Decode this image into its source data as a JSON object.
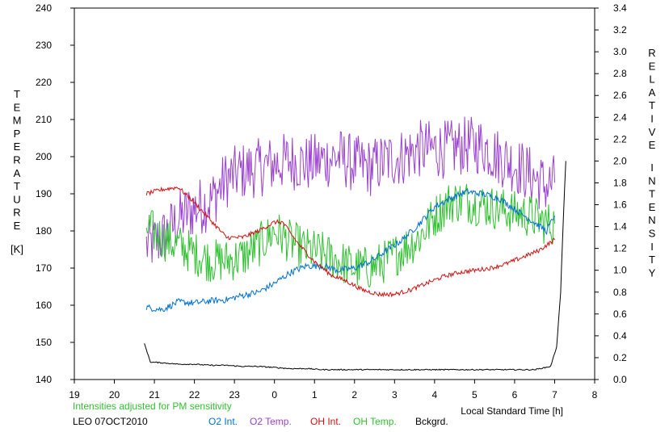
{
  "chart_data": {
    "type": "line",
    "left_axis": {
      "label_letters": [
        "T",
        "E",
        "M",
        "P",
        "E",
        "R",
        "A",
        "T",
        "U",
        "R",
        "E"
      ],
      "unit": "[K]",
      "ylim": [
        140,
        240
      ],
      "ticks": [
        "140",
        "150",
        "160",
        "170",
        "180",
        "190",
        "200",
        "210",
        "220",
        "230",
        "240"
      ]
    },
    "right_axis": {
      "label1_letters": [
        "R",
        "E",
        "L",
        "A",
        "T",
        "I",
        "V",
        "E"
      ],
      "label2_letters": [
        "I",
        "N",
        "T",
        "E",
        "N",
        "S",
        "I",
        "T",
        "Y"
      ],
      "ylim": [
        0.0,
        3.4
      ],
      "ticks": [
        "0.0",
        "0.2",
        "0.4",
        "0.6",
        "0.8",
        "1.0",
        "1.2",
        "1.4",
        "1.6",
        "1.8",
        "2.0",
        "2.2",
        "2.4",
        "2.6",
        "2.8",
        "3.0",
        "3.2",
        "3.4"
      ]
    },
    "x_axis": {
      "xlabel": "Local Standard Time [h]",
      "xlim": [
        19,
        32
      ],
      "tick_labels": [
        "19",
        "20",
        "21",
        "22",
        "23",
        "0",
        "1",
        "2",
        "3",
        "4",
        "5",
        "6",
        "7",
        "8"
      ]
    },
    "note": "Intensities adjusted for PM sensitivity",
    "station": "LEO 07OCT2010",
    "series": [
      {
        "name": "O2 Int.",
        "color": "#0070d0",
        "axis": "right",
        "noise": 0.03,
        "points": [
          [
            20.8,
            0.66
          ],
          [
            21.2,
            0.64
          ],
          [
            21.6,
            0.71
          ],
          [
            22.0,
            0.7
          ],
          [
            22.4,
            0.72
          ],
          [
            22.8,
            0.73
          ],
          [
            23.2,
            0.77
          ],
          [
            23.6,
            0.8
          ],
          [
            24.0,
            0.88
          ],
          [
            24.4,
            0.98
          ],
          [
            24.8,
            1.04
          ],
          [
            25.2,
            1.04
          ],
          [
            25.6,
            1.0
          ],
          [
            26.0,
            1.02
          ],
          [
            26.4,
            1.08
          ],
          [
            26.8,
            1.18
          ],
          [
            27.2,
            1.28
          ],
          [
            27.6,
            1.42
          ],
          [
            28.0,
            1.58
          ],
          [
            28.4,
            1.66
          ],
          [
            28.8,
            1.72
          ],
          [
            29.2,
            1.7
          ],
          [
            29.6,
            1.66
          ],
          [
            30.0,
            1.56
          ],
          [
            30.4,
            1.46
          ],
          [
            30.8,
            1.36
          ],
          [
            31.0,
            1.5
          ]
        ]
      },
      {
        "name": "O2 Temp.",
        "color": "#9a40d0",
        "axis": "left",
        "noise": 8,
        "points": [
          [
            20.8,
            176
          ],
          [
            21.2,
            178
          ],
          [
            21.6,
            183
          ],
          [
            22.0,
            186
          ],
          [
            22.4,
            188
          ],
          [
            22.8,
            194
          ],
          [
            23.2,
            196
          ],
          [
            23.6,
            197
          ],
          [
            24.0,
            198
          ],
          [
            24.4,
            199
          ],
          [
            24.8,
            198
          ],
          [
            25.2,
            199
          ],
          [
            25.6,
            200
          ],
          [
            26.0,
            198
          ],
          [
            26.4,
            197
          ],
          [
            26.8,
            199
          ],
          [
            27.2,
            200
          ],
          [
            27.6,
            202
          ],
          [
            28.0,
            202
          ],
          [
            28.4,
            202
          ],
          [
            28.8,
            203
          ],
          [
            29.2,
            203
          ],
          [
            29.6,
            200
          ],
          [
            30.0,
            198
          ],
          [
            30.4,
            195
          ],
          [
            30.8,
            192
          ],
          [
            31.0,
            193
          ]
        ]
      },
      {
        "name": "OH Int.",
        "color": "#d01010",
        "axis": "right",
        "noise": 0.02,
        "points": [
          [
            20.8,
            1.7
          ],
          [
            21.2,
            1.74
          ],
          [
            21.6,
            1.76
          ],
          [
            22.0,
            1.62
          ],
          [
            22.4,
            1.46
          ],
          [
            22.8,
            1.3
          ],
          [
            23.2,
            1.3
          ],
          [
            23.6,
            1.36
          ],
          [
            24.0,
            1.44
          ],
          [
            24.2,
            1.44
          ],
          [
            24.6,
            1.24
          ],
          [
            25.0,
            1.08
          ],
          [
            25.4,
            0.96
          ],
          [
            25.8,
            0.9
          ],
          [
            26.2,
            0.82
          ],
          [
            26.6,
            0.78
          ],
          [
            27.0,
            0.78
          ],
          [
            27.4,
            0.82
          ],
          [
            27.8,
            0.88
          ],
          [
            28.2,
            0.94
          ],
          [
            28.6,
            0.98
          ],
          [
            29.0,
            1.0
          ],
          [
            29.4,
            1.02
          ],
          [
            29.8,
            1.06
          ],
          [
            30.2,
            1.12
          ],
          [
            30.6,
            1.18
          ],
          [
            31.0,
            1.28
          ]
        ]
      },
      {
        "name": "OH Temp.",
        "color": "#30c030",
        "axis": "left",
        "noise": 6,
        "points": [
          [
            20.8,
            181
          ],
          [
            21.2,
            178
          ],
          [
            21.6,
            176
          ],
          [
            22.0,
            174
          ],
          [
            22.4,
            172
          ],
          [
            22.8,
            172
          ],
          [
            23.2,
            173
          ],
          [
            23.6,
            176
          ],
          [
            24.0,
            180
          ],
          [
            24.4,
            177
          ],
          [
            24.8,
            175
          ],
          [
            25.2,
            174
          ],
          [
            25.6,
            172
          ],
          [
            26.0,
            170
          ],
          [
            26.4,
            170
          ],
          [
            26.8,
            172
          ],
          [
            27.2,
            175
          ],
          [
            27.6,
            178
          ],
          [
            28.0,
            184
          ],
          [
            28.4,
            188
          ],
          [
            28.8,
            188
          ],
          [
            29.2,
            187
          ],
          [
            29.6,
            186
          ],
          [
            30.0,
            185
          ],
          [
            30.4,
            184
          ],
          [
            30.8,
            182
          ],
          [
            31.0,
            182
          ]
        ]
      },
      {
        "name": "Bckgrd.",
        "color": "#000000",
        "axis": "right",
        "noise": 0.005,
        "points": [
          [
            20.75,
            0.33
          ],
          [
            20.9,
            0.16
          ],
          [
            21.3,
            0.15
          ],
          [
            21.6,
            0.14
          ],
          [
            22.0,
            0.14
          ],
          [
            22.4,
            0.13
          ],
          [
            22.8,
            0.13
          ],
          [
            23.2,
            0.12
          ],
          [
            23.6,
            0.12
          ],
          [
            24.0,
            0.11
          ],
          [
            24.4,
            0.1
          ],
          [
            24.8,
            0.1
          ],
          [
            25.2,
            0.09
          ],
          [
            25.6,
            0.09
          ],
          [
            26.0,
            0.09
          ],
          [
            26.4,
            0.09
          ],
          [
            26.8,
            0.09
          ],
          [
            27.2,
            0.09
          ],
          [
            27.6,
            0.09
          ],
          [
            28.0,
            0.09
          ],
          [
            28.4,
            0.09
          ],
          [
            28.8,
            0.09
          ],
          [
            29.2,
            0.09
          ],
          [
            29.6,
            0.09
          ],
          [
            30.0,
            0.09
          ],
          [
            30.5,
            0.09
          ],
          [
            30.9,
            0.12
          ],
          [
            31.05,
            0.3
          ],
          [
            31.15,
            0.8
          ],
          [
            31.22,
            1.5
          ],
          [
            31.28,
            2.0
          ]
        ]
      }
    ]
  }
}
